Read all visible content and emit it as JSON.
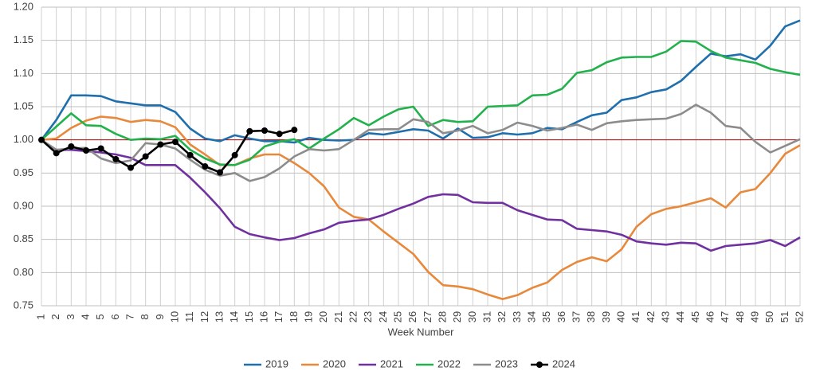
{
  "chart_data": {
    "type": "line",
    "x_label": "Week Number",
    "categories": [
      "1",
      "2",
      "3",
      "4",
      "5",
      "6",
      "7",
      "8",
      "9",
      "10",
      "11",
      "12",
      "13",
      "14",
      "15",
      "16",
      "17",
      "18",
      "19",
      "20",
      "21",
      "22",
      "23",
      "24",
      "25",
      "26",
      "27",
      "28",
      "29",
      "30",
      "31",
      "32",
      "33",
      "34",
      "35",
      "36",
      "37",
      "38",
      "39",
      "40",
      "41",
      "42",
      "43",
      "44",
      "45",
      "46",
      "47",
      "48",
      "49",
      "50",
      "51",
      "52"
    ],
    "ylim": [
      0.75,
      1.2
    ],
    "yticks": [
      {
        "value": 0.75,
        "label": "0.75"
      },
      {
        "value": 0.8,
        "label": "0.80"
      },
      {
        "value": 0.85,
        "label": "0.85"
      },
      {
        "value": 0.9,
        "label": "0.90"
      },
      {
        "value": 0.95,
        "label": "0.95"
      },
      {
        "value": 1.0,
        "label": "1.00"
      },
      {
        "value": 1.05,
        "label": "1.05"
      },
      {
        "value": 1.1,
        "label": "1.10"
      },
      {
        "value": 1.15,
        "label": "1.15"
      },
      {
        "value": 1.2,
        "label": "1.20"
      }
    ],
    "grid": true,
    "reference_line": {
      "value": 1.0,
      "color": "#c00000"
    },
    "legend": "bottom",
    "series": [
      {
        "name": "2019",
        "color": "#1f6fad",
        "values": [
          1.0,
          1.03,
          1.067,
          1.067,
          1.066,
          1.058,
          1.055,
          1.052,
          1.052,
          1.042,
          1.017,
          1.002,
          0.998,
          1.007,
          1.002,
          0.998,
          0.998,
          0.996,
          1.003,
          1.0,
          0.999,
          1.0,
          1.01,
          1.008,
          1.012,
          1.016,
          1.014,
          1.002,
          1.017,
          1.003,
          1.004,
          1.01,
          1.008,
          1.01,
          1.018,
          1.016,
          1.027,
          1.037,
          1.041,
          1.06,
          1.064,
          1.072,
          1.076,
          1.089,
          1.11,
          1.13,
          1.126,
          1.129,
          1.121,
          1.142,
          1.171,
          1.18
        ]
      },
      {
        "name": "2020",
        "color": "#e8883a",
        "values": [
          1.0,
          1.002,
          1.018,
          1.029,
          1.035,
          1.033,
          1.027,
          1.03,
          1.028,
          1.019,
          0.993,
          0.978,
          0.962,
          0.962,
          0.972,
          0.978,
          0.978,
          0.965,
          0.95,
          0.93,
          0.898,
          0.884,
          0.88,
          0.862,
          0.845,
          0.828,
          0.801,
          0.781,
          0.779,
          0.775,
          0.767,
          0.76,
          0.766,
          0.777,
          0.785,
          0.804,
          0.816,
          0.823,
          0.817,
          0.835,
          0.869,
          0.888,
          0.896,
          0.9,
          0.906,
          0.912,
          0.898,
          0.921,
          0.926,
          0.95,
          0.979,
          0.992
        ]
      },
      {
        "name": "2021",
        "color": "#7030a0",
        "values": [
          1.0,
          0.985,
          0.985,
          0.983,
          0.981,
          0.978,
          0.973,
          0.962,
          0.962,
          0.962,
          0.943,
          0.921,
          0.897,
          0.869,
          0.858,
          0.853,
          0.849,
          0.852,
          0.859,
          0.865,
          0.875,
          0.878,
          0.88,
          0.887,
          0.896,
          0.904,
          0.914,
          0.918,
          0.917,
          0.906,
          0.905,
          0.905,
          0.894,
          0.887,
          0.88,
          0.879,
          0.866,
          0.864,
          0.862,
          0.857,
          0.847,
          0.844,
          0.842,
          0.845,
          0.844,
          0.833,
          0.84,
          0.842,
          0.844,
          0.849,
          0.84,
          0.853
        ]
      },
      {
        "name": "2022",
        "color": "#22b14c",
        "values": [
          1.0,
          1.02,
          1.04,
          1.022,
          1.021,
          1.009,
          1.0,
          1.002,
          1.001,
          1.006,
          0.985,
          0.972,
          0.963,
          0.962,
          0.97,
          0.99,
          0.997,
          1.001,
          0.987,
          1.002,
          1.016,
          1.033,
          1.022,
          1.035,
          1.046,
          1.05,
          1.021,
          1.03,
          1.027,
          1.028,
          1.05,
          1.051,
          1.052,
          1.067,
          1.068,
          1.077,
          1.101,
          1.105,
          1.117,
          1.124,
          1.125,
          1.125,
          1.133,
          1.149,
          1.148,
          1.134,
          1.124,
          1.12,
          1.116,
          1.107,
          1.102,
          1.098
        ]
      },
      {
        "name": "2023",
        "color": "#8c8c8c",
        "values": [
          1.0,
          0.985,
          0.987,
          0.988,
          0.972,
          0.965,
          0.969,
          0.995,
          0.993,
          0.987,
          0.97,
          0.955,
          0.946,
          0.95,
          0.938,
          0.944,
          0.957,
          0.975,
          0.986,
          0.984,
          0.986,
          1.0,
          1.015,
          1.016,
          1.016,
          1.031,
          1.027,
          1.01,
          1.014,
          1.021,
          1.01,
          1.015,
          1.026,
          1.021,
          1.014,
          1.018,
          1.023,
          1.015,
          1.025,
          1.028,
          1.03,
          1.031,
          1.032,
          1.039,
          1.053,
          1.041,
          1.021,
          1.018,
          0.997,
          0.981,
          0.991,
          1.001
        ]
      },
      {
        "name": "2024",
        "color": "#000000",
        "markers": true,
        "values": [
          1.0,
          0.98,
          0.99,
          0.984,
          0.987,
          0.971,
          0.958,
          0.975,
          0.993,
          0.997,
          0.977,
          0.96,
          0.951,
          0.977,
          1.013,
          1.014,
          1.009,
          1.015,
          null,
          null,
          null,
          null,
          null,
          null,
          null,
          null,
          null,
          null,
          null,
          null,
          null,
          null,
          null,
          null,
          null,
          null,
          null,
          null,
          null,
          null,
          null,
          null,
          null,
          null,
          null,
          null,
          null,
          null,
          null,
          null,
          null,
          null
        ]
      }
    ]
  }
}
